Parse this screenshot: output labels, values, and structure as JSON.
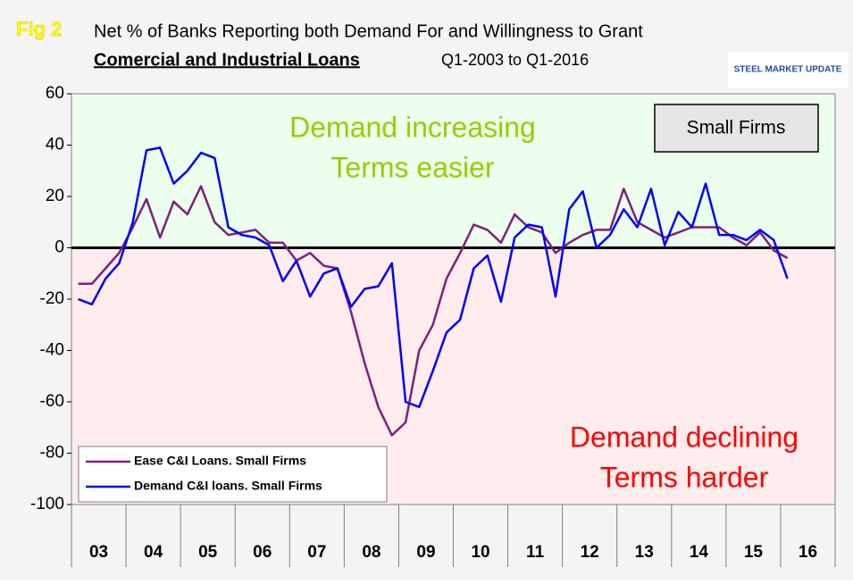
{
  "chart_data": {
    "type": "line",
    "fig_label": "Fig 2",
    "title": "Net % of Banks Reporting both Demand For and Willingness to Grant",
    "subtitle_bold": "Comercial and Industrial Loans",
    "subtitle_rest": "Q1-2003 to Q1-2016",
    "logo": "STEEL MARKET UPDATE",
    "panel_label": "Small Firms",
    "annotations": {
      "upper": [
        "Demand increasing",
        "Terms easier"
      ],
      "lower": [
        "Demand declining",
        "Terms harder"
      ]
    },
    "categories": [
      "03",
      null,
      null,
      null,
      "04",
      null,
      null,
      null,
      "05",
      null,
      null,
      null,
      "06",
      null,
      null,
      null,
      "07",
      null,
      null,
      null,
      "08",
      null,
      null,
      null,
      "09",
      null,
      null,
      null,
      "10",
      null,
      null,
      null,
      "11",
      null,
      null,
      null,
      "12",
      null,
      null,
      null,
      "13",
      null,
      null,
      null,
      "14",
      null,
      null,
      null,
      "15",
      null,
      null,
      null,
      "16"
    ],
    "series": [
      {
        "name": "Ease C&I Loans. Small Firms",
        "color": "#7f1f7f",
        "values": [
          -14,
          -14,
          -8,
          -2,
          8,
          19,
          4,
          18,
          13,
          24,
          10,
          5,
          6,
          7,
          2,
          2,
          -5,
          -2,
          -7,
          -8,
          -25,
          -45,
          -62,
          -73,
          -68,
          -40,
          -30,
          -12,
          -2,
          9,
          7,
          2,
          13,
          8,
          6,
          -2,
          2,
          5,
          7,
          7,
          23,
          10,
          7,
          4,
          6,
          8,
          8,
          8,
          4,
          1,
          6,
          -1,
          -4
        ]
      },
      {
        "name": "Demand C&I loans. Small Firms",
        "color": "#0000ff",
        "values": [
          -20,
          -22,
          -12,
          -6,
          10,
          38,
          39,
          25,
          30,
          37,
          35,
          8,
          5,
          4,
          1,
          -13,
          -5,
          -19,
          -10,
          -8,
          -23,
          -16,
          -15,
          -6,
          -60,
          -62,
          -48,
          -33,
          -28,
          -8,
          -3,
          -21,
          4,
          9,
          8,
          -19,
          15,
          22,
          0,
          5,
          15,
          8,
          23,
          1,
          14,
          8,
          25,
          5,
          5,
          3,
          7,
          3,
          -12
        ]
      }
    ],
    "ylim": [
      -100,
      60
    ],
    "yticks": [
      -100,
      -80,
      -60,
      -40,
      -20,
      0,
      20,
      40,
      60
    ],
    "grid": false
  }
}
